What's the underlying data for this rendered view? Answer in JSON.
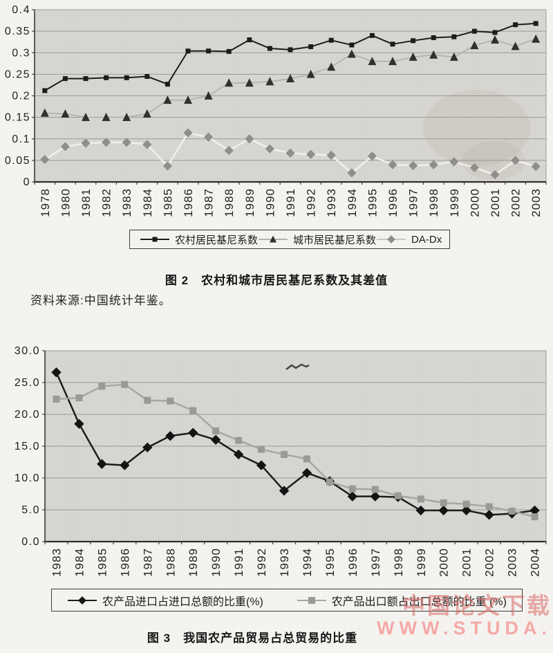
{
  "page": {
    "source_note": "资料来源:中国统计年鉴。",
    "watermark_line1": "中国论文下载",
    "watermark_line2": "WWW.STUDA."
  },
  "colors": {
    "paper": "#f5f4f1",
    "plot_background": "#d7d6d2",
    "gridline": "#9b9a96",
    "axis": "#2f2f2d",
    "text": "#1f1f1f",
    "watermark_dark": "#d96a66",
    "watermark_light": "#f59c9a"
  },
  "chart_data": [
    {
      "type": "line",
      "caption": "图 2　农村和城市居民基尼系数及其差值",
      "categories": [
        "1978",
        "1980",
        "1981",
        "1982",
        "1983",
        "1984",
        "1985",
        "1986",
        "1987",
        "1988",
        "1989",
        "1990",
        "1991",
        "1992",
        "1993",
        "1994",
        "1995",
        "1996",
        "1997",
        "1998",
        "1999",
        "2000",
        "2001",
        "2002",
        "2003"
      ],
      "series": [
        {
          "name": "农村居民基尼系数",
          "marker": "square",
          "line_color": "#1c1c1c",
          "marker_color": "#1c1c1c",
          "line_width": 2,
          "marker_size": 7,
          "values": [
            0.212,
            0.24,
            0.24,
            0.242,
            0.242,
            0.245,
            0.227,
            0.304,
            0.304,
            0.303,
            0.33,
            0.31,
            0.307,
            0.314,
            0.329,
            0.318,
            0.34,
            0.32,
            0.328,
            0.335,
            0.337,
            0.35,
            0.347,
            0.365,
            0.368
          ]
        },
        {
          "name": "城市居民基尼系数",
          "marker": "triangle",
          "line_color": "#b3b2ae",
          "marker_color": "#30302e",
          "line_width": 1.8,
          "marker_size": 12,
          "values": [
            0.16,
            0.158,
            0.15,
            0.15,
            0.15,
            0.158,
            0.19,
            0.19,
            0.2,
            0.23,
            0.23,
            0.233,
            0.24,
            0.25,
            0.267,
            0.297,
            0.28,
            0.28,
            0.29,
            0.295,
            0.29,
            0.317,
            0.33,
            0.315,
            0.332
          ]
        },
        {
          "name": "DA-Dx",
          "marker": "diamond",
          "line_color": "#f2f1ed",
          "legend_line_color": "#c9c8c4",
          "marker_color": "#8f8f8b",
          "line_width": 2.5,
          "marker_size": 11,
          "values": [
            0.052,
            0.082,
            0.09,
            0.092,
            0.092,
            0.087,
            0.037,
            0.114,
            0.104,
            0.073,
            0.1,
            0.077,
            0.067,
            0.064,
            0.062,
            0.021,
            0.06,
            0.04,
            0.038,
            0.04,
            0.047,
            0.033,
            0.017,
            0.05,
            0.036
          ]
        }
      ],
      "ylim": [
        0,
        0.4
      ],
      "yticks": [
        0,
        0.05,
        0.1,
        0.15,
        0.2,
        0.25,
        0.3,
        0.35,
        0.4
      ],
      "ytick_labels": [
        "0",
        "0.05",
        "0.1",
        "0.15",
        "0.2",
        "0.25",
        "0.3",
        "0.35",
        "0.4"
      ],
      "grid": true,
      "legend_position": "bottom"
    },
    {
      "type": "line",
      "caption": "图 3　我国农产品贸易占总贸易的比重",
      "categories": [
        "1983",
        "1984",
        "1985",
        "1986",
        "1987",
        "1988",
        "1989",
        "1990",
        "1991",
        "1992",
        "1993",
        "1994",
        "1995",
        "1996",
        "1997",
        "1998",
        "1999",
        "2000",
        "2001",
        "2002",
        "2003",
        "2004"
      ],
      "series": [
        {
          "name": "农产品进口占进口总额的比重(%)",
          "marker": "diamond",
          "line_color": "#1c1c1c",
          "marker_color": "#141414",
          "line_width": 2.5,
          "marker_size": 12,
          "values": [
            26.6,
            18.5,
            12.2,
            12.0,
            14.8,
            16.6,
            17.1,
            16.0,
            13.7,
            12.0,
            8.0,
            10.8,
            9.5,
            7.1,
            7.1,
            7.0,
            4.9,
            4.9,
            4.9,
            4.2,
            4.4,
            4.9
          ]
        },
        {
          "name": "农产品出口额占出口总额的比重 (%)",
          "marker": "square",
          "line_color": "#a8a7a3",
          "marker_color": "#9b9a96",
          "line_width": 2.5,
          "marker_size": 10,
          "values": [
            22.4,
            22.6,
            24.4,
            24.7,
            22.2,
            22.1,
            20.6,
            17.4,
            15.9,
            14.5,
            13.7,
            13.0,
            9.4,
            8.3,
            8.2,
            7.2,
            6.7,
            6.1,
            5.9,
            5.5,
            4.8,
            3.9
          ]
        }
      ],
      "ylim": [
        0,
        30
      ],
      "yticks": [
        0,
        5,
        10,
        15,
        20,
        25,
        30
      ],
      "ytick_labels": [
        "0.0",
        "5.0",
        "10.0",
        "15.0",
        "20.0",
        "25.0",
        "30.0"
      ],
      "grid": true,
      "legend_position": "bottom"
    }
  ]
}
